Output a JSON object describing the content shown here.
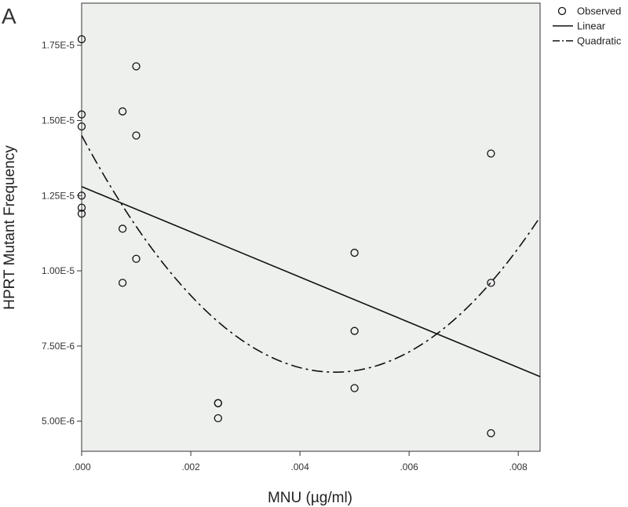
{
  "panel_label": "A",
  "chart_data": {
    "type": "scatter",
    "title": "",
    "xlabel": "MNU (µg/ml)",
    "ylabel": "HPRT Mutant Frequency",
    "xlim": [
      0,
      0.0084
    ],
    "ylim": [
      4e-06,
      1.89e-05
    ],
    "x_ticks": [
      {
        "value": 0,
        "label": ".000"
      },
      {
        "value": 0.002,
        "label": ".002"
      },
      {
        "value": 0.004,
        "label": ".004"
      },
      {
        "value": 0.006,
        "label": ".006"
      },
      {
        "value": 0.008,
        "label": ".008"
      }
    ],
    "y_ticks": [
      {
        "value": 5e-06,
        "label": "5.00E-6"
      },
      {
        "value": 7.5e-06,
        "label": "7.50E-6"
      },
      {
        "value": 1e-05,
        "label": "1.00E-5"
      },
      {
        "value": 1.25e-05,
        "label": "1.25E-5"
      },
      {
        "value": 1.5e-05,
        "label": "1.50E-5"
      },
      {
        "value": 1.75e-05,
        "label": "1.75E-5"
      }
    ],
    "grid": false,
    "background_color": "#eef0ee",
    "legend_position": "top-right",
    "legend": [
      {
        "name": "Observed",
        "style": "open-circle"
      },
      {
        "name": "Linear",
        "style": "solid-line"
      },
      {
        "name": "Quadratic",
        "style": "dash-dot-line"
      }
    ],
    "observed": {
      "name": "Observed",
      "x": [
        0,
        0,
        0,
        0,
        0,
        0,
        0.00075,
        0.00075,
        0.00075,
        0.001,
        0.001,
        0.001,
        0.0025,
        0.0025,
        0.0025,
        0.005,
        0.005,
        0.005,
        0.0075,
        0.0075,
        0.0075
      ],
      "y": [
        1.77e-05,
        1.52e-05,
        1.48e-05,
        1.25e-05,
        1.21e-05,
        1.19e-05,
        1.53e-05,
        1.14e-05,
        9.6e-06,
        1.68e-05,
        1.45e-05,
        1.04e-05,
        5.6e-06,
        5.6e-06,
        5.1e-06,
        1.06e-05,
        8e-06,
        6.1e-06,
        1.39e-05,
        9.6e-06,
        4.6e-06
      ]
    },
    "linear_fit": {
      "name": "Linear",
      "intercept": 1.28e-05,
      "slope": -0.000752
    },
    "quadratic_fit": {
      "name": "Quadratic",
      "a": 1.45e-05,
      "b": -0.003391,
      "c": 0.3653
    }
  }
}
